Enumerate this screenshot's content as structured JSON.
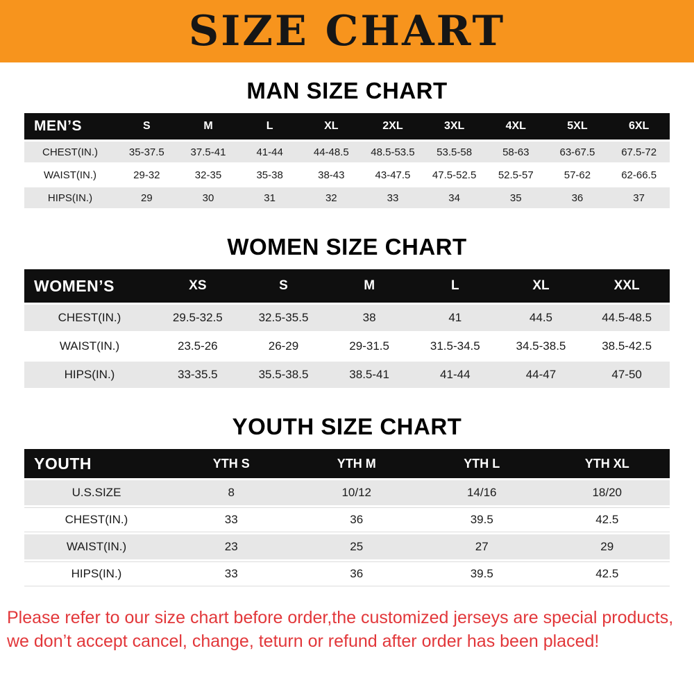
{
  "banner": {
    "title": "SIZE CHART",
    "bg_color": "#f7941d"
  },
  "chart_data": [
    {
      "type": "table",
      "title": "MAN SIZE CHART",
      "corner_label": "MEN’S",
      "columns": [
        "S",
        "M",
        "L",
        "XL",
        "2XL",
        "3XL",
        "4XL",
        "5XL",
        "6XL"
      ],
      "rows": [
        {
          "label": "CHEST(IN.)",
          "values": [
            "35-37.5",
            "37.5-41",
            "41-44",
            "44-48.5",
            "48.5-53.5",
            "53.5-58",
            "58-63",
            "63-67.5",
            "67.5-72"
          ]
        },
        {
          "label": "WAIST(IN.)",
          "values": [
            "29-32",
            "32-35",
            "35-38",
            "38-43",
            "43-47.5",
            "47.5-52.5",
            "52.5-57",
            "57-62",
            "62-66.5"
          ]
        },
        {
          "label": "HIPS(IN.)",
          "values": [
            "29",
            "30",
            "31",
            "32",
            "33",
            "34",
            "35",
            "36",
            "37"
          ]
        }
      ]
    },
    {
      "type": "table",
      "title": "WOMEN SIZE CHART",
      "corner_label": "WOMEN’S",
      "columns": [
        "XS",
        "S",
        "M",
        "L",
        "XL",
        "XXL"
      ],
      "rows": [
        {
          "label": "CHEST(IN.)",
          "values": [
            "29.5-32.5",
            "32.5-35.5",
            "38",
            "41",
            "44.5",
            "44.5-48.5"
          ]
        },
        {
          "label": "WAIST(IN.)",
          "values": [
            "23.5-26",
            "26-29",
            "29-31.5",
            "31.5-34.5",
            "34.5-38.5",
            "38.5-42.5"
          ]
        },
        {
          "label": "HIPS(IN.)",
          "values": [
            "33-35.5",
            "35.5-38.5",
            "38.5-41",
            "41-44",
            "44-47",
            "47-50"
          ]
        }
      ]
    },
    {
      "type": "table",
      "title": "YOUTH SIZE CHART",
      "corner_label": "YOUTH",
      "columns": [
        "YTH S",
        "YTH M",
        "YTH L",
        "YTH XL"
      ],
      "rows": [
        {
          "label": "U.S.SIZE",
          "values": [
            "8",
            "10/12",
            "14/16",
            "18/20"
          ]
        },
        {
          "label": "CHEST(IN.)",
          "values": [
            "33",
            "36",
            "39.5",
            "42.5"
          ]
        },
        {
          "label": "WAIST(IN.)",
          "values": [
            "23",
            "25",
            "27",
            "29"
          ]
        },
        {
          "label": "HIPS(IN.)",
          "values": [
            "33",
            "36",
            "39.5",
            "42.5"
          ]
        }
      ]
    }
  ],
  "footer": {
    "line1": "Please refer to our size chart before order,the customized jerseys are special products,",
    "line2": "we don’t accept cancel, change, teturn or refund after order has been placed!",
    "color": "#e2373a"
  }
}
